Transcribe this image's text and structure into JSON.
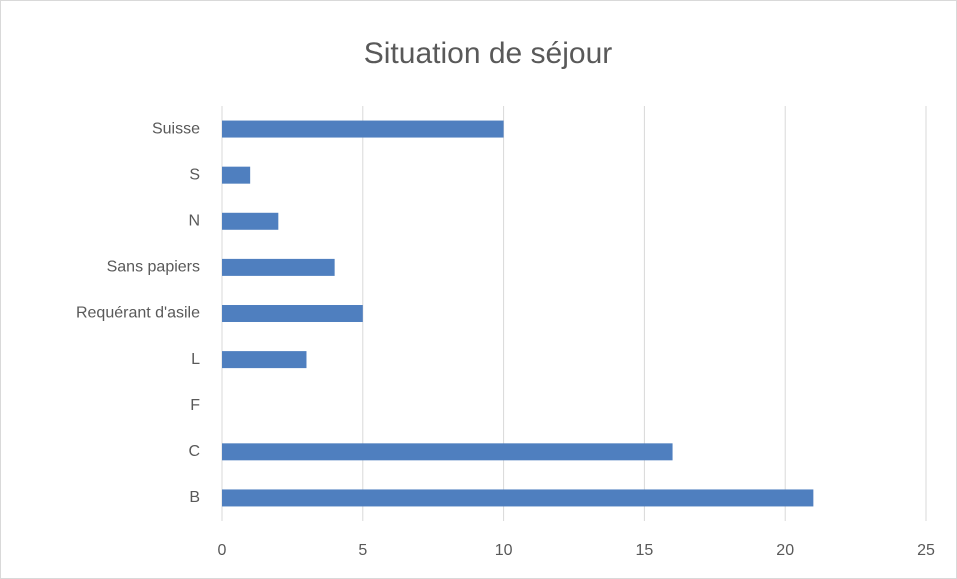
{
  "chart_data": {
    "type": "bar",
    "orientation": "horizontal",
    "title": "Situation de séjour",
    "categories": [
      "Suisse",
      "S",
      "N",
      "Sans papiers",
      "Requérant d'asile",
      "L",
      "F",
      "C",
      "B"
    ],
    "values": [
      10,
      1,
      2,
      4,
      5,
      3,
      0,
      16,
      21
    ],
    "color": "#4f7fbf",
    "xlim": [
      0,
      25
    ],
    "xticks": [
      0,
      5,
      10,
      15,
      20,
      25
    ],
    "grid": true
  }
}
